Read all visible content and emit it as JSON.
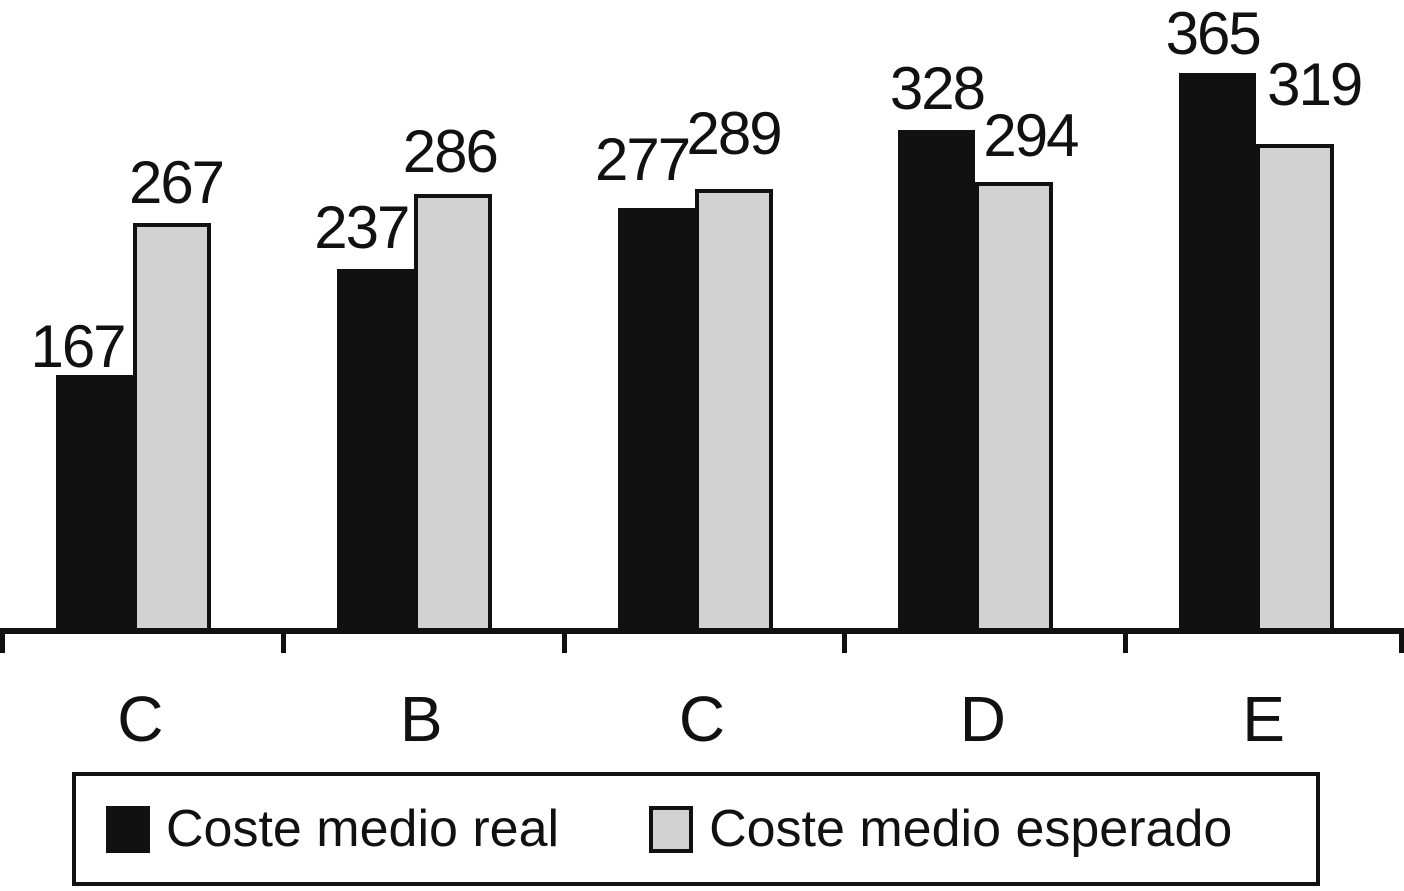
{
  "chart_data": {
    "type": "bar",
    "title": "",
    "xlabel": "",
    "ylabel": "",
    "categories": [
      "C",
      "B",
      "C",
      "D",
      "E"
    ],
    "series": [
      {
        "name": "Coste medio real",
        "color": "#111111",
        "values": [
          167,
          237,
          277,
          328,
          365
        ]
      },
      {
        "name": "Coste medio esperado",
        "color": "#d2d2d2",
        "values": [
          267,
          286,
          289,
          294,
          319
        ]
      }
    ],
    "value_labels": true,
    "grid": false,
    "ylim": [
      0,
      413
    ],
    "axis_color": "#111111",
    "background": "#ffffff",
    "legend_position": "bottom-box",
    "label_layout": {
      "real": [
        {
          "dx": -17,
          "gap": 8
        },
        {
          "dx": -14,
          "gap": 21
        },
        {
          "dx": -14,
          "gap": 28
        },
        {
          "dx": 0,
          "gap": 21
        },
        {
          "dx": -5,
          "gap": 19
        }
      ],
      "esperado": [
        {
          "dx": 4,
          "gap": 20
        },
        {
          "dx": -3,
          "gap": 22
        },
        {
          "dx": 0,
          "gap": 35
        },
        {
          "dx": 16,
          "gap": 26
        },
        {
          "dx": 19,
          "gap": 39
        }
      ]
    }
  }
}
